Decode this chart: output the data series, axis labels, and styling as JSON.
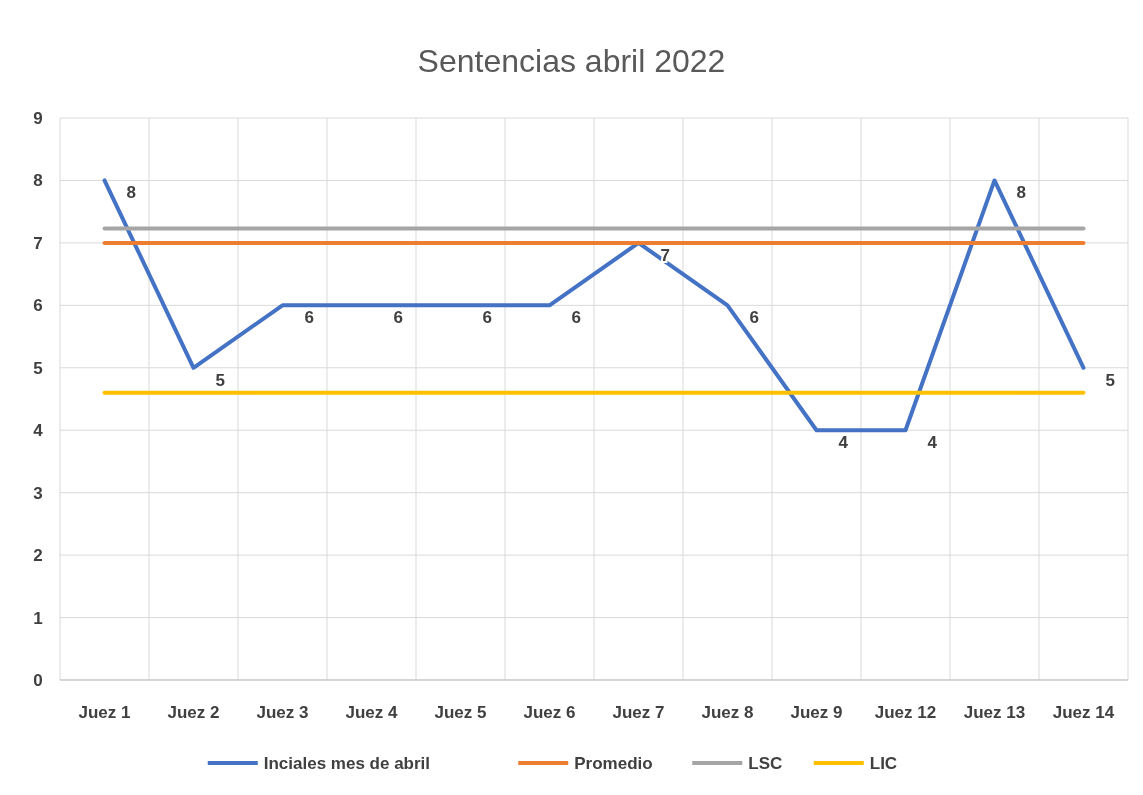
{
  "chart_data": {
    "type": "line",
    "title": "Sentencias abril 2022",
    "categories": [
      "Juez 1",
      "Juez 2",
      "Juez 3",
      "Juez 4",
      "Juez 5",
      "Juez 6",
      "Juez 7",
      "Juez 8",
      "Juez 9",
      "Juez 12",
      "Juez 13",
      "Juez 14"
    ],
    "series": [
      {
        "name": "Inciales mes de abril",
        "color": "#4472c4",
        "values": [
          8,
          5,
          6,
          6,
          6,
          6,
          7,
          6,
          4,
          4,
          8,
          5
        ],
        "value_labels": [
          "8",
          "5",
          "6",
          "6",
          "6",
          "6",
          "7",
          "6",
          "4",
          "4",
          "8",
          "5"
        ]
      },
      {
        "name": "Promedio",
        "color": "#ed7d31",
        "values": [
          7,
          7,
          7,
          7,
          7,
          7,
          7,
          7,
          7,
          7,
          7,
          7
        ]
      },
      {
        "name": "LSC",
        "color": "#a5a5a5",
        "values": [
          7.23,
          7.23,
          7.23,
          7.23,
          7.23,
          7.23,
          7.23,
          7.23,
          7.23,
          7.23,
          7.23,
          7.23
        ]
      },
      {
        "name": "LIC",
        "color": "#ffc000",
        "values": [
          4.6,
          4.6,
          4.6,
          4.6,
          4.6,
          4.6,
          4.6,
          4.6,
          4.6,
          4.6,
          4.6,
          4.6
        ]
      }
    ],
    "ylim": [
      0,
      9
    ],
    "yticks": [
      0,
      1,
      2,
      3,
      4,
      5,
      6,
      7,
      8,
      9
    ],
    "grid": true,
    "legend": "bottom",
    "marker": "none",
    "line_style": "solid"
  }
}
